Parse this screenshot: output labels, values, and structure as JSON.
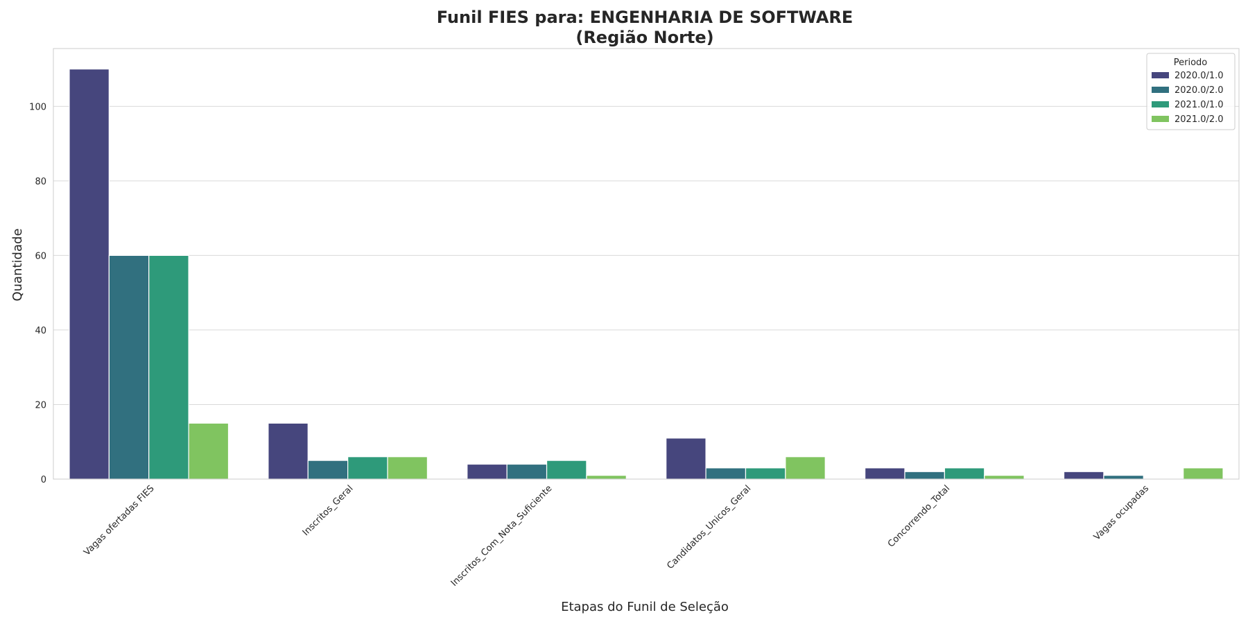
{
  "chart_data": {
    "type": "bar",
    "title": "Funil FIES para: ENGENHARIA DE SOFTWARE",
    "subtitle": "(Região Norte)",
    "xlabel": "Etapas do Funil de Seleção",
    "ylabel": "Quantidade",
    "ylim": [
      0,
      115.5
    ],
    "yticks": [
      0,
      20,
      40,
      60,
      80,
      100
    ],
    "grid": true,
    "legend_title": "Periodo",
    "legend_position": "top-right",
    "categories": [
      "Vagas ofertadas FIES",
      "Inscritos_Geral",
      "Inscritos_Com_Nota_Suficiente",
      "Candidatos_Unicos_Geral",
      "Concorrendo_Total",
      "Vagas ocupadas"
    ],
    "series": [
      {
        "name": "2020.0/1.0",
        "color": "#46467d",
        "values": [
          110,
          15,
          4,
          11,
          3,
          2
        ]
      },
      {
        "name": "2020.0/2.0",
        "color": "#31707f",
        "values": [
          60,
          5,
          4,
          3,
          2,
          1
        ]
      },
      {
        "name": "2021.0/1.0",
        "color": "#2e9a7a",
        "values": [
          60,
          6,
          5,
          3,
          3,
          0
        ]
      },
      {
        "name": "2021.0/2.0",
        "color": "#80c460",
        "values": [
          15,
          6,
          1,
          6,
          1,
          3
        ]
      }
    ]
  }
}
